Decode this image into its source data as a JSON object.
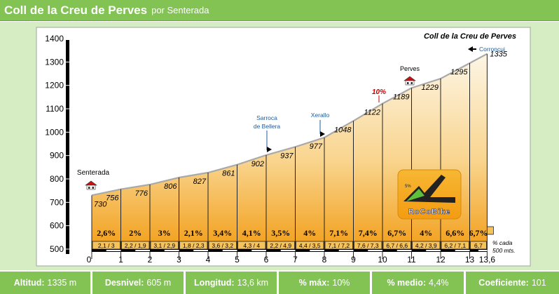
{
  "header": {
    "title": "Coll de la Creu de Perves",
    "subtitle": "por Senterada"
  },
  "chart_data": {
    "type": "area",
    "title": "Coll de la Creu de Perves",
    "xlabel": "",
    "ylabel": "",
    "xlim": [
      0,
      13.6
    ],
    "ylim": [
      500,
      1400
    ],
    "yticks": [
      500,
      600,
      700,
      800,
      900,
      1000,
      1100,
      1200,
      1300,
      1400
    ],
    "xticks": [
      "0",
      "1",
      "2",
      "3",
      "4",
      "5",
      "6",
      "7",
      "8",
      "9",
      "10",
      "11",
      "12",
      "13",
      "13,6"
    ],
    "points": [
      {
        "x": 0,
        "y": 730,
        "label": "730"
      },
      {
        "x": 1,
        "y": 756,
        "label": "756"
      },
      {
        "x": 2,
        "y": 776,
        "label": "776"
      },
      {
        "x": 3,
        "y": 806,
        "label": "806"
      },
      {
        "x": 4,
        "y": 827,
        "label": "827"
      },
      {
        "x": 5,
        "y": 861,
        "label": "861"
      },
      {
        "x": 6,
        "y": 902,
        "label": "902"
      },
      {
        "x": 7,
        "y": 937,
        "label": "937"
      },
      {
        "x": 8,
        "y": 977,
        "label": "977"
      },
      {
        "x": 9,
        "y": 1048,
        "label": "1048"
      },
      {
        "x": 10,
        "y": 1122,
        "label": "1122"
      },
      {
        "x": 11,
        "y": 1189,
        "label": "1189"
      },
      {
        "x": 12,
        "y": 1229,
        "label": "1229"
      },
      {
        "x": 13,
        "y": 1295,
        "label": "1295"
      },
      {
        "x": 13.6,
        "y": 1335,
        "label": "1335"
      }
    ],
    "segment_avg": [
      "2,6%",
      "2%",
      "3%",
      "2,1%",
      "3,4%",
      "4,1%",
      "3,5%",
      "4%",
      "7,1%",
      "7,4%",
      "6,7%",
      "4%",
      "6,6%",
      "6,7%"
    ],
    "segment_detail": [
      "2,1 / 3",
      "2,2 / 1,9",
      "3,1 / 2,9",
      "1,8 / 2,3",
      "3,6 / 3,2",
      "4,3 / 4",
      "2,2 / 4,9",
      "4,4 / 3,5",
      "7,1 / 7,2",
      "7,6 / 7,3",
      "6,7 / 6,6",
      "4,2 / 3,9",
      "6,2 / 7,1",
      "6,7"
    ],
    "legend_line1": "% cada",
    "legend_line2": "500 mts.",
    "annotations": {
      "senterada": "Senterada",
      "sarroca_1": "Sarroca",
      "sarroca_2": "de Bellera",
      "xerallo": "Xerallo",
      "perves": "Perves",
      "corroncui": "Corroncui",
      "max_grade": "10%"
    },
    "logo_text": "RoCoBike",
    "logo_mark": "5%",
    "colors": {
      "fill_top": "#fdf3dd",
      "fill_bottom": "#f5a623",
      "outline": "#999999",
      "max_grade": "#cc0000",
      "arrow_blue": "#1a5b9c",
      "header_green": "#82c354"
    }
  },
  "stats": [
    {
      "label": "Altitud:",
      "value": "1335 m"
    },
    {
      "label": "Desnivel:",
      "value": "605 m"
    },
    {
      "label": "Longitud:",
      "value": "13,6 km"
    },
    {
      "label": "% máx:",
      "value": "10%"
    },
    {
      "label": "% medio:",
      "value": "4,4%"
    },
    {
      "label": "Coeficiente:",
      "value": "101"
    }
  ]
}
